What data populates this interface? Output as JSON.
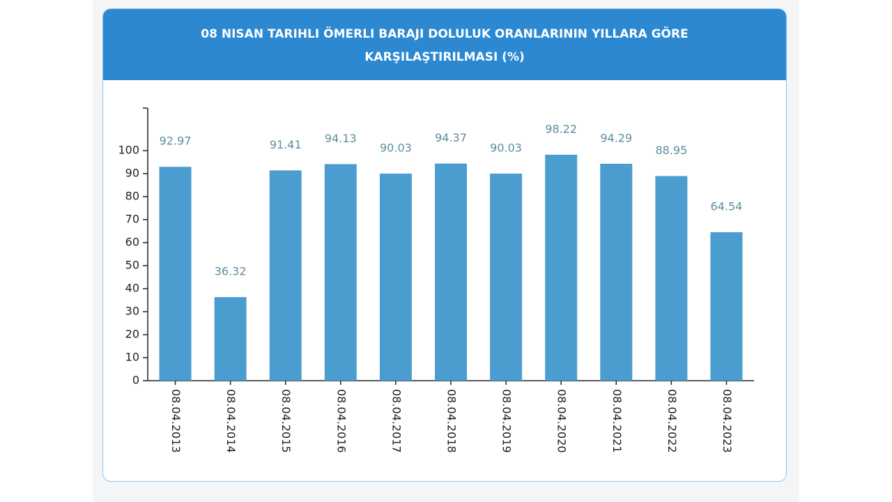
{
  "chart_data": {
    "type": "bar",
    "title": "08 NISAN TARIHLI ÖMERLI BARAJI DOLULUK ORANLARININ YILLARA GÖRE KARŞILAŞTIRILMASI (%)",
    "categories": [
      "08.04.2013",
      "08.04.2014",
      "08.04.2015",
      "08.04.2016",
      "08.04.2017",
      "08.04.2018",
      "08.04.2019",
      "08.04.2020",
      "08.04.2021",
      "08.04.2022",
      "08.04.2023"
    ],
    "values": [
      92.97,
      36.32,
      91.41,
      94.13,
      90.03,
      94.37,
      90.03,
      98.22,
      94.29,
      88.95,
      64.54
    ],
    "color": "#4b9dcf",
    "ylim": [
      0,
      118.5
    ],
    "yticks": [
      0,
      10,
      20,
      30,
      40,
      50,
      60,
      70,
      80,
      90,
      100
    ],
    "grid": false
  }
}
